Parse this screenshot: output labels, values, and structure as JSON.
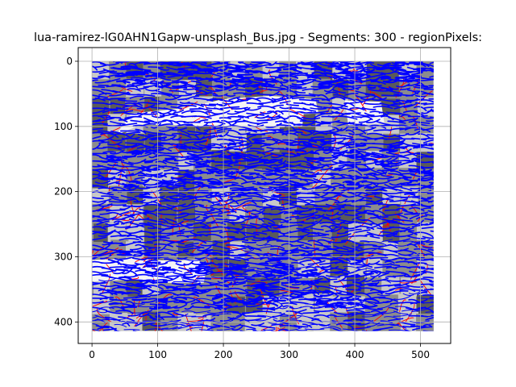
{
  "chart_data": {
    "type": "image",
    "title": "lua-ramirez-lG0AHN1Gapw-unsplash_Bus.jpg - Segments: 300 - regionPixels:",
    "xlabel": "",
    "ylabel": "",
    "xlim": [
      -21,
      546
    ],
    "ylim": [
      433,
      -21
    ],
    "y_inverted": true,
    "grid": true,
    "image_extent": [
      0,
      520,
      0,
      414
    ],
    "x_ticks": [
      0,
      100,
      200,
      300,
      400,
      500
    ],
    "x_tick_labels": [
      "0",
      "100",
      "200",
      "300",
      "400",
      "500"
    ],
    "y_ticks": [
      0,
      100,
      200,
      300,
      400
    ],
    "y_tick_labels": [
      "0",
      "100",
      "200",
      "300",
      "400"
    ],
    "series": [
      {
        "name": "segment boundaries",
        "color": "#ff0000"
      },
      {
        "name": "flow lines",
        "color": "#0000ff"
      }
    ],
    "colors": {
      "background_gray": "#8c8c8c",
      "dark_gray": "#5a5a5a",
      "light_gray": "#c8c8c8",
      "window_white": "#f4f4f4",
      "boundary_red": "#ff0000",
      "line_blue": "#0000ff",
      "grid": "#b0b0b0"
    }
  }
}
